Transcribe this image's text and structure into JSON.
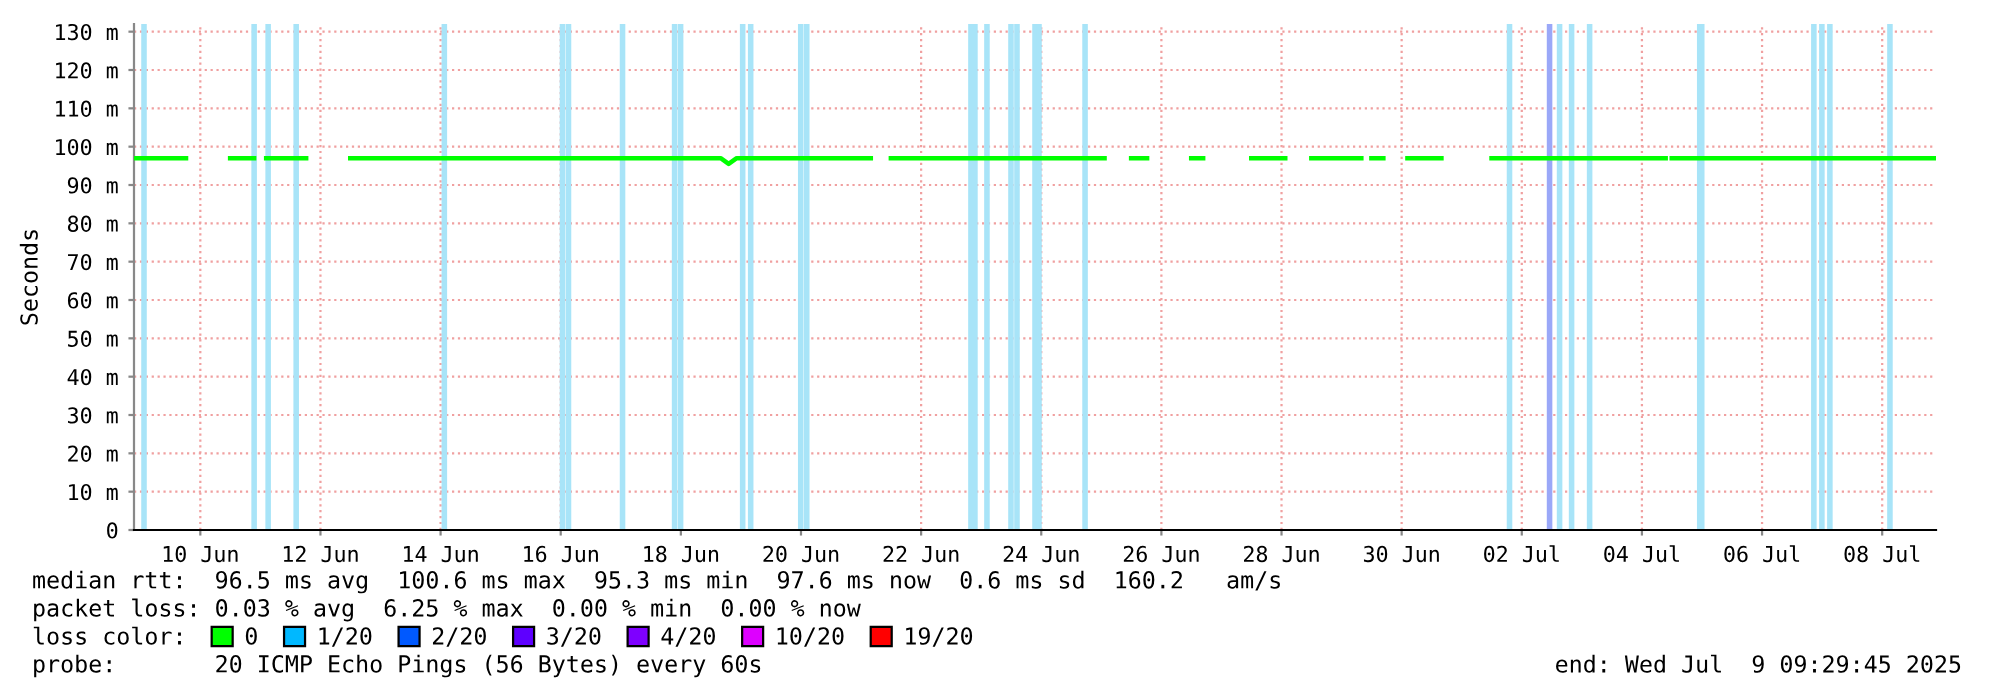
{
  "chart_data": {
    "type": "line",
    "ylabel": "Seconds",
    "legend_title": "loss color:",
    "legend": "bottom",
    "grid": true,
    "marker": "none",
    "line_style": "solid",
    "xlim": [
      "2025-06-09T09:30",
      "2025-07-09T09:30"
    ],
    "xticks": [
      {
        "value": "2025-06-10T12:00",
        "label": "10 Jun"
      },
      {
        "value": "2025-06-12T12:00",
        "label": "12 Jun"
      },
      {
        "value": "2025-06-14T12:00",
        "label": "14 Jun"
      },
      {
        "value": "2025-06-16T12:00",
        "label": "16 Jun"
      },
      {
        "value": "2025-06-18T12:00",
        "label": "18 Jun"
      },
      {
        "value": "2025-06-20T12:00",
        "label": "20 Jun"
      },
      {
        "value": "2025-06-22T12:00",
        "label": "22 Jun"
      },
      {
        "value": "2025-06-24T12:00",
        "label": "24 Jun"
      },
      {
        "value": "2025-06-26T12:00",
        "label": "26 Jun"
      },
      {
        "value": "2025-06-28T12:00",
        "label": "28 Jun"
      },
      {
        "value": "2025-06-30T12:00",
        "label": "30 Jun"
      },
      {
        "value": "2025-07-02T12:00",
        "label": "02 Jul"
      },
      {
        "value": "2025-07-04T12:00",
        "label": "04 Jul"
      },
      {
        "value": "2025-07-06T12:00",
        "label": "06 Jul"
      },
      {
        "value": "2025-07-08T12:00",
        "label": "08 Jul"
      }
    ],
    "ylim": [
      0,
      132
    ],
    "yticks": [
      0,
      {
        "value": 10,
        "label": "10 m"
      },
      {
        "value": 20,
        "label": "20 m"
      },
      {
        "value": 30,
        "label": "30 m"
      },
      {
        "value": 40,
        "label": "40 m"
      },
      {
        "value": 50,
        "label": "50 m"
      },
      {
        "value": 60,
        "label": "60 m"
      },
      {
        "value": 70,
        "label": "70 m"
      },
      {
        "value": 80,
        "label": "80 m"
      },
      {
        "value": 90,
        "label": "90 m"
      },
      {
        "value": 100,
        "label": "100 m"
      },
      {
        "value": 110,
        "label": "110 m"
      },
      {
        "value": 120,
        "label": "120 m"
      },
      {
        "value": 130,
        "label": "130 m"
      }
    ],
    "series": [
      {
        "name": "0",
        "color": "#00ff00",
        "x": [
          "2025-06-09T09:30",
          "2025-06-10T06:18",
          "2025-06-10T11:54",
          "2025-06-10T23:54",
          "2025-06-11T09:30",
          "2025-06-11T11:54",
          "2025-06-11T14:18",
          "2025-06-12T06:18",
          "2025-06-12T11:54",
          "2025-06-12T23:54",
          "2025-06-19T03:54",
          "2025-06-19T07:06",
          "2025-06-19T10:18",
          "2025-06-21T15:54",
          "2025-06-21T19:54",
          "2025-06-21T23:54",
          "2025-06-25T13:18",
          "2025-06-25T18:06",
          "2025-06-25T23:54",
          "2025-06-26T06:18",
          "2025-06-26T15:06",
          "2025-06-26T23:54",
          "2025-06-27T04:42",
          "2025-06-27T14:18",
          "2025-06-27T23:54",
          "2025-06-28T13:30",
          "2025-06-28T18:18",
          "2025-06-28T23:54",
          "2025-06-29T19:54",
          "2025-06-29T22:18",
          "2025-06-29T23:54",
          "2025-06-30T04:42",
          "2025-06-30T09:30",
          "2025-06-30T14:18",
          "2025-07-01T03:54",
          "2025-07-01T13:30",
          "2025-07-01T23:54",
          "2025-07-04T21:30",
          "2025-07-04T22:18",
          "2025-07-04T23:54",
          "2025-07-09T08:42"
        ],
        "values": [
          97,
          97,
          null,
          97,
          97,
          null,
          97,
          97,
          null,
          97,
          97,
          95.5,
          97,
          97,
          null,
          97,
          97,
          null,
          97,
          97,
          null,
          97,
          97,
          null,
          97,
          97,
          null,
          97,
          97,
          null,
          97,
          97,
          null,
          97,
          97,
          null,
          97,
          97,
          null,
          97,
          97
        ]
      },
      {
        "name": "1/20",
        "color": "#00b8ff"
      },
      {
        "name": "2/20",
        "color": "#0059ff"
      },
      {
        "name": "3/20",
        "color": "#5e00ff"
      },
      {
        "name": "4/20",
        "color": "#7e00ff"
      },
      {
        "name": "10/20",
        "color": "#dd00ff"
      },
      {
        "name": "19/20",
        "color": "#ff0000"
      }
    ],
    "ref_lines": [
      {
        "axis": "x",
        "value": "2025-06-09T13:30",
        "color": "#a8e4f8"
      },
      {
        "axis": "x",
        "value": "2025-06-11T09:30",
        "color": "#a8e4f8"
      },
      {
        "axis": "x",
        "value": "2025-06-11T15:06",
        "color": "#a8e4f8"
      },
      {
        "axis": "x",
        "value": "2025-06-12T02:18",
        "color": "#a8e4f8"
      },
      {
        "axis": "x",
        "value": "2025-06-14T13:30",
        "color": "#a8e4f8"
      },
      {
        "axis": "x",
        "value": "2025-06-16T12:42",
        "color": "#a8e4f8"
      },
      {
        "axis": "x",
        "value": "2025-06-16T15:06",
        "color": "#a8e4f8"
      },
      {
        "axis": "x",
        "value": "2025-06-17T12:42",
        "color": "#a8e4f8"
      },
      {
        "axis": "x",
        "value": "2025-06-18T09:30",
        "color": "#a8e4f8"
      },
      {
        "axis": "x",
        "value": "2025-06-18T11:54",
        "color": "#a8e4f8"
      },
      {
        "axis": "x",
        "value": "2025-06-19T12:42",
        "color": "#a8e4f8"
      },
      {
        "axis": "x",
        "value": "2025-06-19T15:54",
        "color": "#a8e4f8"
      },
      {
        "axis": "x",
        "value": "2025-06-20T11:54",
        "color": "#a8e4f8"
      },
      {
        "axis": "x",
        "value": "2025-06-20T14:18",
        "color": "#a8e4f8"
      },
      {
        "axis": "x",
        "value": "2025-06-23T07:54",
        "color": "#a8e4f8"
      },
      {
        "axis": "x",
        "value": "2025-06-23T09:30",
        "color": "#a8e4f8"
      },
      {
        "axis": "x",
        "value": "2025-06-23T14:18",
        "color": "#a8e4f8"
      },
      {
        "axis": "x",
        "value": "2025-06-23T23:54",
        "color": "#a8e4f8"
      },
      {
        "axis": "x",
        "value": "2025-06-24T02:18",
        "color": "#a8e4f8"
      },
      {
        "axis": "x",
        "value": "2025-06-24T09:30",
        "color": "#a8e4f8"
      },
      {
        "axis": "x",
        "value": "2025-06-24T11:06",
        "color": "#a8e4f8"
      },
      {
        "axis": "x",
        "value": "2025-06-25T05:30",
        "color": "#a8e4f8"
      },
      {
        "axis": "x",
        "value": "2025-07-02T07:06",
        "color": "#a8e4f8"
      },
      {
        "axis": "x",
        "value": "2025-07-02T23:06",
        "color": "#9aa8f8"
      },
      {
        "axis": "x",
        "value": "2025-07-03T03:06",
        "color": "#a8e4f8"
      },
      {
        "axis": "x",
        "value": "2025-07-03T07:54",
        "color": "#a8e4f8"
      },
      {
        "axis": "x",
        "value": "2025-07-03T15:06",
        "color": "#a8e4f8"
      },
      {
        "axis": "x",
        "value": "2025-07-05T11:06",
        "color": "#a8e4f8"
      },
      {
        "axis": "x",
        "value": "2025-07-05T11:54",
        "color": "#a8e4f8"
      },
      {
        "axis": "x",
        "value": "2025-07-07T08:42",
        "color": "#a8e4f8"
      },
      {
        "axis": "x",
        "value": "2025-07-07T11:54",
        "color": "#a8e4f8"
      },
      {
        "axis": "x",
        "value": "2025-07-07T15:06",
        "color": "#a8e4f8"
      },
      {
        "axis": "x",
        "value": "2025-07-08T15:06",
        "color": "#a8e4f8"
      }
    ],
    "annotations": [
      "median rtt:  96.5 ms avg  100.6 ms max  95.3 ms min  97.6 ms now  0.6 ms sd  160.2   am/s",
      "packet loss: 0.03 % avg  6.25 % max  0.00 % min  0.00 % now",
      "probe:       20 ICMP Echo Pings (56 Bytes) every 60s",
      "end: Wed Jul  9 09:29:45 2025"
    ]
  }
}
